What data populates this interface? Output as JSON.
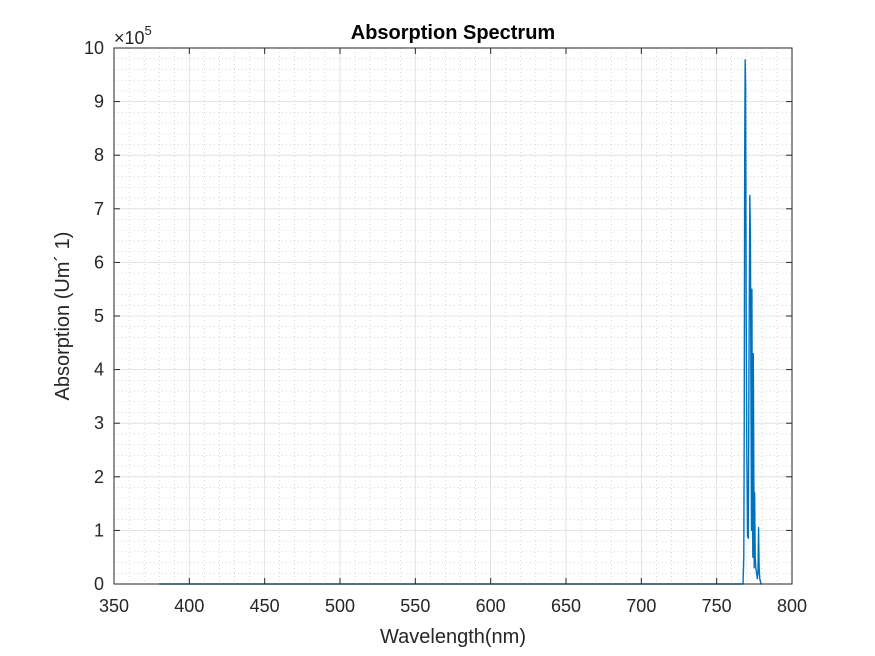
{
  "chart_data": {
    "type": "line",
    "title": "Absorption Spectrum",
    "xlabel": "Wavelength(nm)",
    "ylabel": "Absorption (Um´ 1)",
    "xlim": [
      350,
      800
    ],
    "ylim": [
      0,
      10
    ],
    "y_multiplier_label": "×10",
    "y_multiplier_exponent": "5",
    "x_ticks": [
      350,
      400,
      450,
      500,
      550,
      600,
      650,
      700,
      750,
      800
    ],
    "x_tick_labels": [
      "350",
      "400",
      "450",
      "500",
      "550",
      "600",
      "650",
      "700",
      "750",
      "800"
    ],
    "y_ticks": [
      0,
      1,
      2,
      3,
      4,
      5,
      6,
      7,
      8,
      9,
      10
    ],
    "y_tick_labels": [
      "0",
      "1",
      "2",
      "3",
      "4",
      "5",
      "6",
      "7",
      "8",
      "9",
      "10"
    ],
    "grid": "on",
    "minor_grid": "on",
    "colors": {
      "series": "#0072BD",
      "axes": "#262626",
      "grid": "#dcdcdc",
      "minor_grid": "#bdbdbd"
    },
    "series": [
      {
        "x": [
          380,
          500,
          600,
          700,
          760,
          767.5,
          768.0,
          768.3,
          768.6,
          768.9,
          769.2,
          769.6,
          770.0,
          770.5,
          771.0,
          771.5,
          772.0,
          772.4,
          772.8,
          773.1,
          773.4,
          773.7,
          774.0,
          774.3,
          774.6,
          774.9,
          775.2,
          775.6,
          776.0,
          776.5,
          777.0,
          777.4,
          777.8,
          778.2,
          778.6,
          779.0,
          779.5,
          780.0
        ],
        "y": [
          0,
          0,
          0,
          0,
          0,
          0,
          0.5,
          3.0,
          8.0,
          9.78,
          9.3,
          5.0,
          2.5,
          0.9,
          0.85,
          4.5,
          7.25,
          6.5,
          3.2,
          1.0,
          5.5,
          2.0,
          0.5,
          4.3,
          2.5,
          0.3,
          1.7,
          0.5,
          0.3,
          0.2,
          0.1,
          0.2,
          1.05,
          0.3,
          0.1,
          0.05,
          0,
          0
        ]
      }
    ]
  }
}
